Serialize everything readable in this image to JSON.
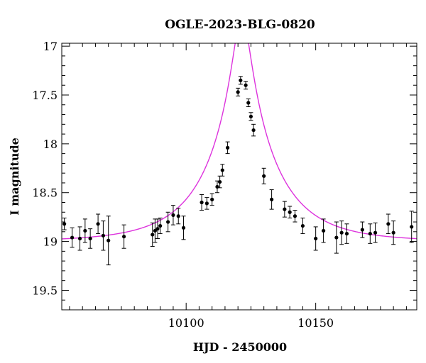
{
  "chart_data": {
    "type": "scatter",
    "title": "OGLE-2023-BLG-0820",
    "xlabel": "HJD - 2450000",
    "ylabel": "I magnitude",
    "xlim": [
      10052,
      10189
    ],
    "ylim": [
      19.7,
      16.97
    ],
    "y_inverted": true,
    "xticks": [
      10100,
      10150
    ],
    "yticks": [
      17,
      17.5,
      18,
      18.5,
      19,
      19.5
    ],
    "ytick_labels": [
      "17",
      "17.5",
      "18",
      "18.5",
      "19",
      "19.5"
    ],
    "grid": false,
    "colors": {
      "points": "#000000",
      "model": "#dd33dd"
    },
    "series": [
      {
        "kind": "points_with_errorbars",
        "x": [
          10053,
          10056,
          10059,
          10061,
          10063,
          10066,
          10068,
          10070,
          10076,
          10087,
          10088,
          10089,
          10090,
          10093,
          10095,
          10097,
          10099,
          10106,
          10108,
          10110,
          10112,
          10113,
          10114,
          10116,
          10120,
          10121,
          10123,
          10124,
          10125,
          10126,
          10130,
          10133,
          10138,
          10140,
          10142,
          10145,
          10150,
          10153,
          10158,
          10160,
          10162,
          10168,
          10171,
          10173,
          10178,
          10180,
          10187
        ],
        "y": [
          18.82,
          18.96,
          18.97,
          18.89,
          18.97,
          18.82,
          18.94,
          18.99,
          18.95,
          18.93,
          18.89,
          18.87,
          18.84,
          18.8,
          18.73,
          18.74,
          18.86,
          18.6,
          18.61,
          18.57,
          18.44,
          18.39,
          18.27,
          18.04,
          17.47,
          17.35,
          17.4,
          17.58,
          17.72,
          17.86,
          18.33,
          18.57,
          18.67,
          18.7,
          18.74,
          18.84,
          18.97,
          18.89,
          18.96,
          18.91,
          18.92,
          18.88,
          18.92,
          18.91,
          18.82,
          18.91,
          18.85
        ],
        "yerr": [
          0.06,
          0.1,
          0.12,
          0.12,
          0.1,
          0.1,
          0.15,
          0.25,
          0.12,
          0.12,
          0.12,
          0.1,
          0.08,
          0.1,
          0.1,
          0.08,
          0.12,
          0.08,
          0.06,
          0.06,
          0.06,
          0.06,
          0.06,
          0.06,
          0.04,
          0.04,
          0.04,
          0.04,
          0.04,
          0.06,
          0.08,
          0.1,
          0.08,
          0.06,
          0.06,
          0.08,
          0.12,
          0.12,
          0.16,
          0.12,
          0.1,
          0.08,
          0.1,
          0.1,
          0.1,
          0.12,
          0.16
        ]
      },
      {
        "kind": "model_curve",
        "model": "point-lens",
        "t0": 10121.5,
        "tE": 26,
        "u0": 0.12,
        "baseline_mag": 19.0,
        "x_range": [
          10052,
          10189
        ]
      }
    ]
  }
}
